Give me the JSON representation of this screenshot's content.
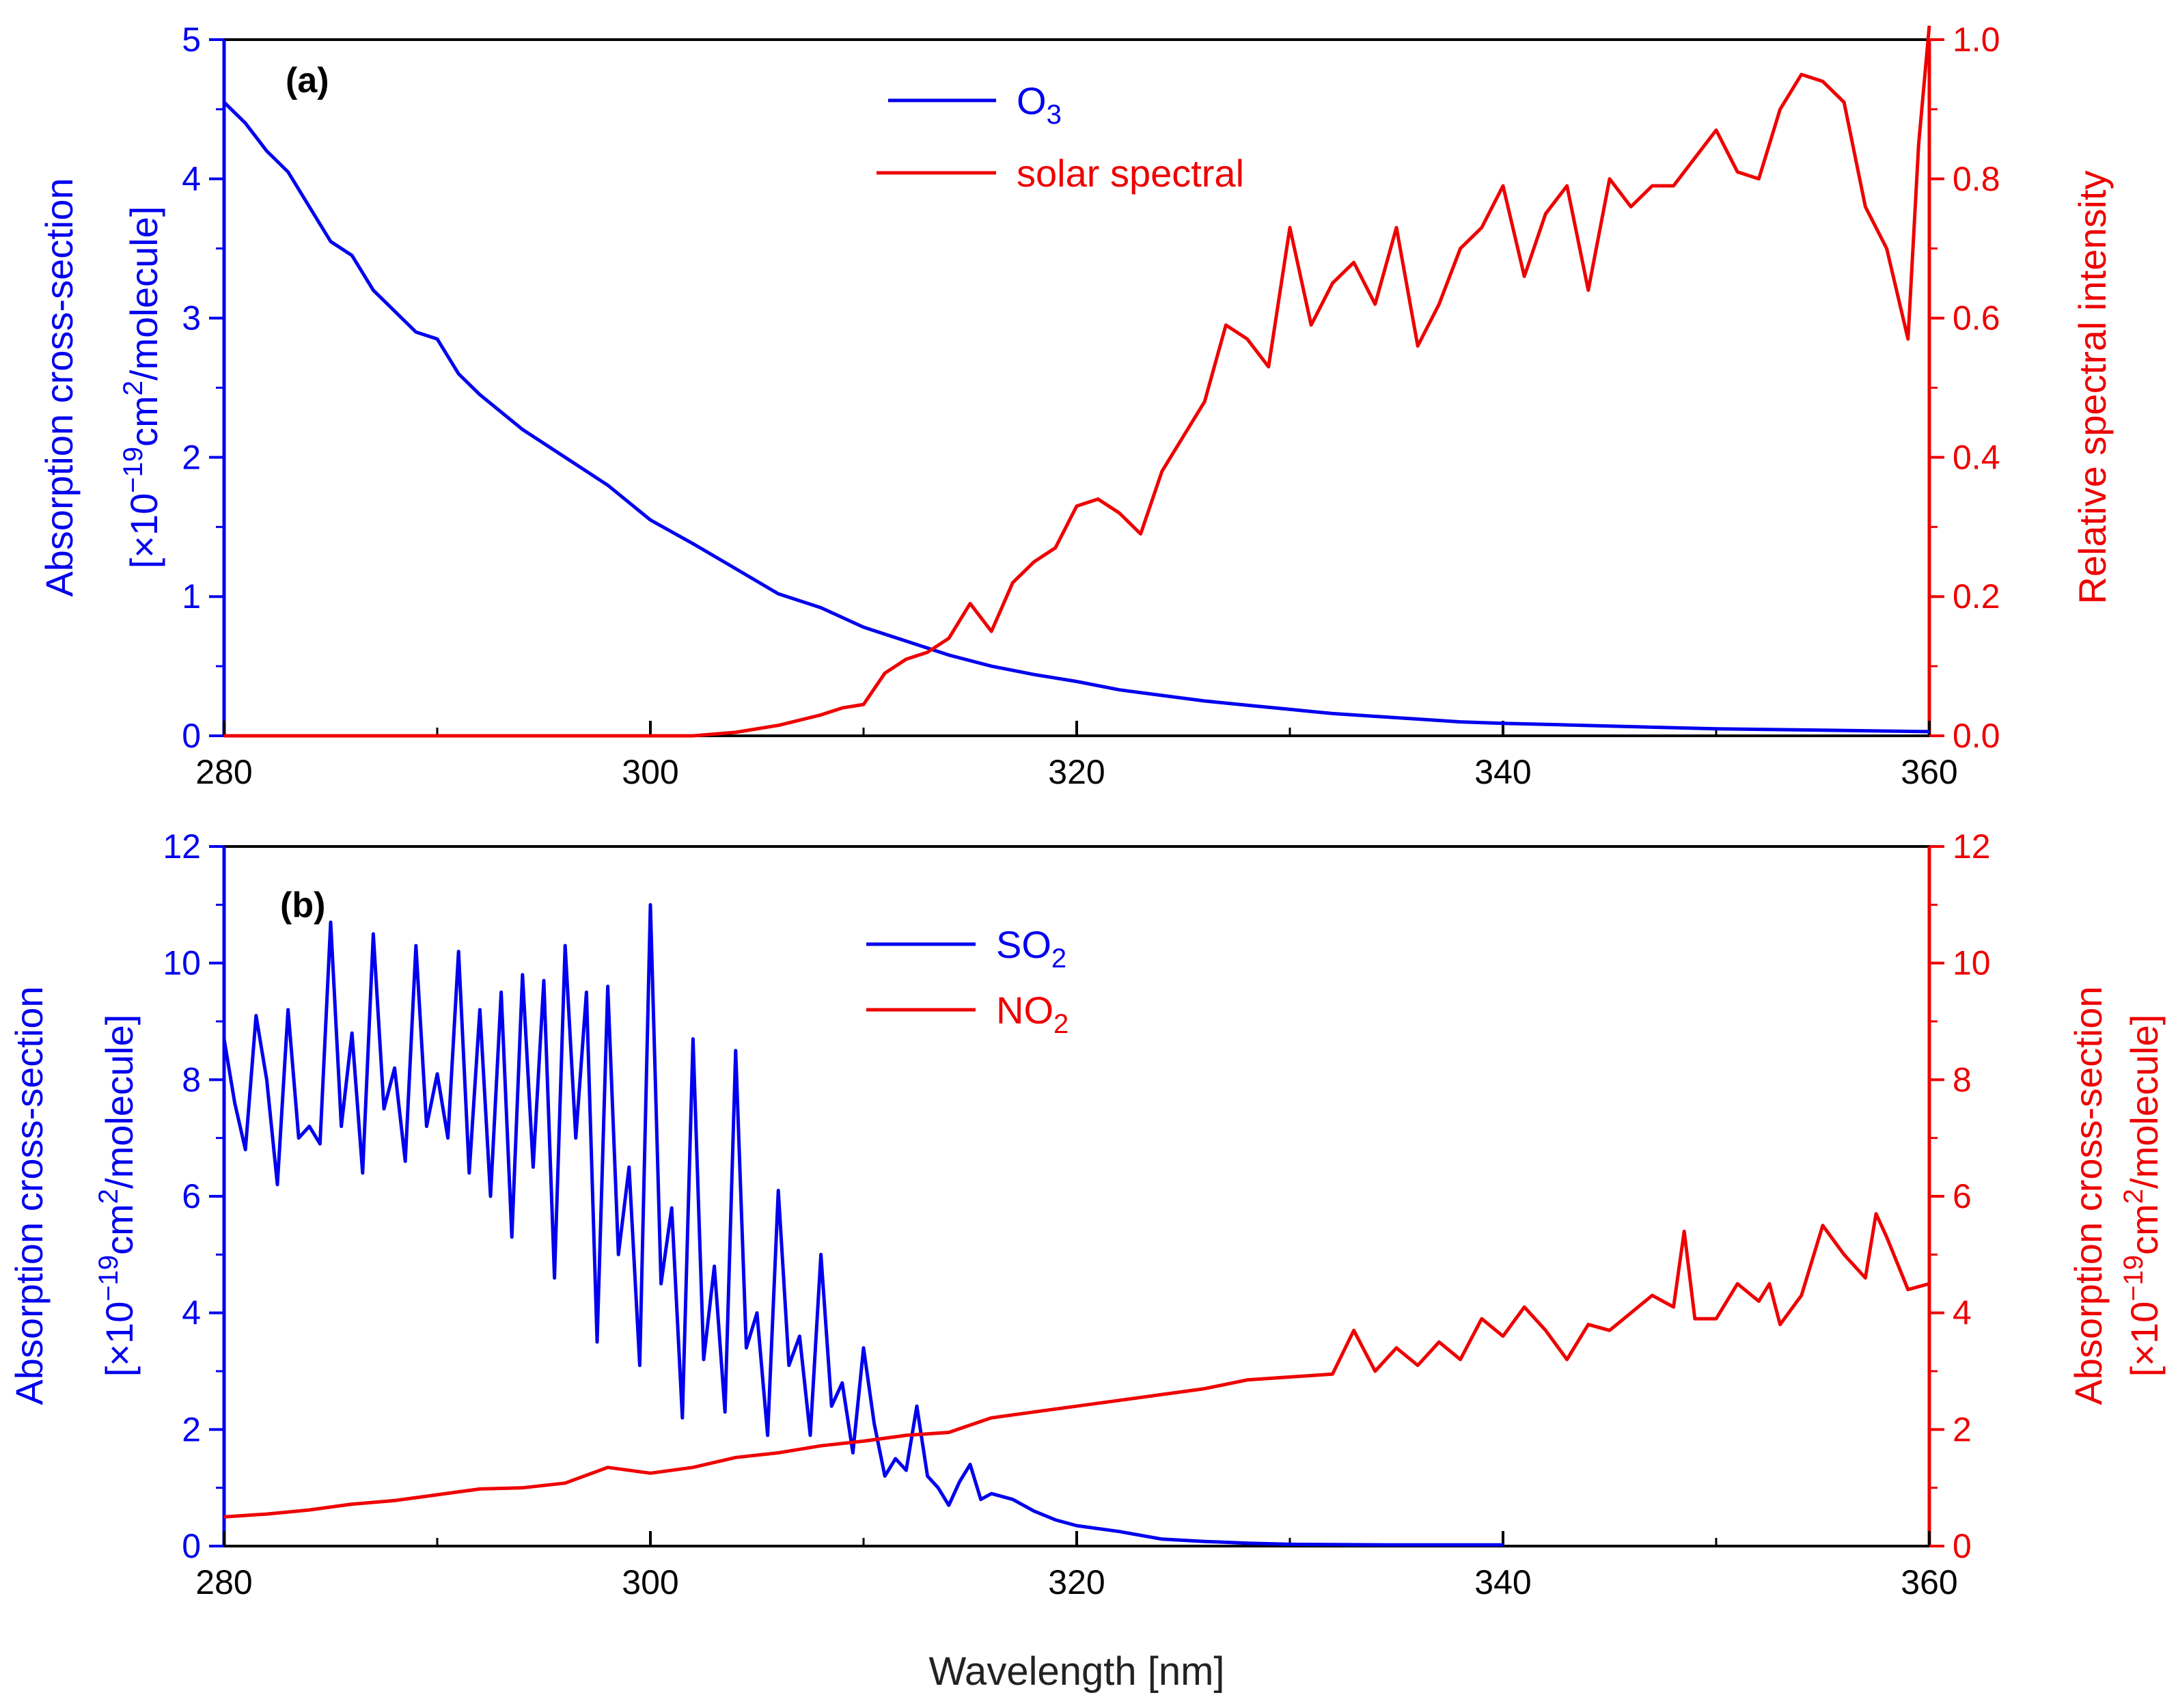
{
  "colors": {
    "blue": "#0000ee",
    "red": "#ee0000",
    "black": "#000000"
  },
  "x_axis_title": "Wavelength [nm]",
  "chart_data": [
    {
      "type": "line",
      "panel_label": "(a)",
      "xlim": [
        280,
        360
      ],
      "xticks": [
        "280",
        "300",
        "320",
        "340",
        "360"
      ],
      "y_left": {
        "title_line1": "Absorption cross-section",
        "title_line2_pre": "[×10",
        "title_line2_exp": "−19",
        "title_line2_mid": "cm",
        "title_line2_sup2": "2",
        "title_line2_post": "/molecule]",
        "ylim": [
          0,
          5
        ],
        "ticks": [
          "0",
          "1",
          "2",
          "3",
          "4",
          "5"
        ]
      },
      "y_right": {
        "title": "Relative spectral intensity",
        "ylim": [
          0,
          1.0
        ],
        "ticks": [
          "0.0",
          "0.2",
          "0.4",
          "0.6",
          "0.8",
          "1.0"
        ]
      },
      "legend": [
        {
          "name": "O",
          "sub": "3",
          "color": "#0000ee"
        },
        {
          "name": "solar spectral",
          "sub": "",
          "color": "#ee0000"
        }
      ],
      "series": [
        {
          "name": "O3",
          "axis": "left",
          "color": "#0000ee",
          "x": [
            280,
            281,
            282,
            283,
            284,
            285,
            286,
            287,
            288,
            289,
            290,
            291,
            292,
            294,
            296,
            298,
            300,
            302,
            304,
            306,
            308,
            310,
            312,
            314,
            316,
            318,
            320,
            322,
            324,
            326,
            328,
            330,
            332,
            334,
            336,
            338,
            340,
            345,
            350,
            355,
            360
          ],
          "y": [
            4.55,
            4.4,
            4.2,
            4.05,
            3.8,
            3.55,
            3.45,
            3.2,
            3.05,
            2.9,
            2.85,
            2.6,
            2.45,
            2.2,
            2.0,
            1.8,
            1.55,
            1.38,
            1.2,
            1.02,
            0.92,
            0.78,
            0.68,
            0.58,
            0.5,
            0.44,
            0.39,
            0.33,
            0.29,
            0.25,
            0.22,
            0.19,
            0.16,
            0.14,
            0.12,
            0.1,
            0.09,
            0.07,
            0.05,
            0.04,
            0.03
          ]
        },
        {
          "name": "solar spectral",
          "axis": "right",
          "color": "#ee0000",
          "x": [
            280,
            302,
            304,
            306,
            308,
            309,
            310,
            311,
            312,
            313,
            314,
            315,
            316,
            317,
            318,
            319,
            320,
            321,
            322,
            323,
            324,
            325,
            326,
            327,
            328,
            329,
            330,
            331,
            332,
            333,
            334,
            335,
            336,
            337,
            338,
            339,
            340,
            341,
            342,
            343,
            344,
            345,
            346,
            347,
            348,
            349,
            350,
            351,
            352,
            353,
            354,
            355,
            356,
            357,
            358,
            359,
            359.5,
            360
          ],
          "y": [
            0.0,
            0.0,
            0.005,
            0.015,
            0.03,
            0.04,
            0.045,
            0.09,
            0.11,
            0.12,
            0.14,
            0.19,
            0.15,
            0.22,
            0.25,
            0.27,
            0.33,
            0.34,
            0.32,
            0.29,
            0.38,
            0.43,
            0.48,
            0.59,
            0.57,
            0.53,
            0.73,
            0.59,
            0.65,
            0.68,
            0.62,
            0.73,
            0.56,
            0.62,
            0.7,
            0.73,
            0.79,
            0.66,
            0.75,
            0.79,
            0.64,
            0.8,
            0.76,
            0.79,
            0.79,
            0.83,
            0.87,
            0.81,
            0.8,
            0.9,
            0.95,
            0.94,
            0.91,
            0.76,
            0.7,
            0.57,
            0.85,
            1.02
          ]
        }
      ]
    },
    {
      "type": "line",
      "panel_label": "(b)",
      "xlim": [
        280,
        360
      ],
      "xticks": [
        "280",
        "300",
        "320",
        "340",
        "360"
      ],
      "y_left": {
        "title_line1": "Absorption cross-section",
        "title_line2_pre": "[×10",
        "title_line2_exp": "−19",
        "title_line2_mid": "cm",
        "title_line2_sup2": "2",
        "title_line2_post": "/molecule]",
        "ylim": [
          0,
          12
        ],
        "ticks": [
          "0",
          "2",
          "4",
          "6",
          "8",
          "10",
          "12"
        ]
      },
      "y_right": {
        "title_line1": "Absorption cross-section",
        "title_line2_pre": "[×10",
        "title_line2_exp": "−19",
        "title_line2_mid": "cm",
        "title_line2_sup2": "2",
        "title_line2_post": "/molecule]",
        "ylim": [
          0,
          12
        ],
        "ticks": [
          "0",
          "2",
          "4",
          "6",
          "8",
          "10",
          "12"
        ]
      },
      "legend": [
        {
          "name": "SO",
          "sub": "2",
          "color": "#0000ee"
        },
        {
          "name": "NO",
          "sub": "2",
          "color": "#ee0000"
        }
      ],
      "series": [
        {
          "name": "SO2",
          "axis": "left",
          "color": "#0000ee",
          "x": [
            280,
            280.5,
            281,
            281.5,
            282,
            282.5,
            283,
            283.5,
            284,
            284.5,
            285,
            285.5,
            286,
            286.5,
            287,
            287.5,
            288,
            288.5,
            289,
            289.5,
            290,
            290.5,
            291,
            291.5,
            292,
            292.5,
            293,
            293.5,
            294,
            294.5,
            295,
            295.5,
            296,
            296.5,
            297,
            297.5,
            298,
            298.5,
            299,
            299.5,
            300,
            300.5,
            301,
            301.5,
            302,
            302.5,
            303,
            303.5,
            304,
            304.5,
            305,
            305.5,
            306,
            306.5,
            307,
            307.5,
            308,
            308.5,
            309,
            309.5,
            310,
            310.5,
            311,
            311.5,
            312,
            312.5,
            313,
            313.5,
            314,
            314.5,
            315,
            315.5,
            316,
            317,
            318,
            319,
            320,
            322,
            324,
            326,
            328,
            330,
            335,
            340
          ],
          "y": [
            8.7,
            7.6,
            6.8,
            9.1,
            8.0,
            6.2,
            9.2,
            7.0,
            7.2,
            6.9,
            10.7,
            7.2,
            8.8,
            6.4,
            10.5,
            7.5,
            8.2,
            6.6,
            10.3,
            7.2,
            8.1,
            7.0,
            10.2,
            6.4,
            9.2,
            6.0,
            9.5,
            5.3,
            9.8,
            6.5,
            9.7,
            4.6,
            10.3,
            7.0,
            9.5,
            3.5,
            9.6,
            5.0,
            6.5,
            3.1,
            11.0,
            4.5,
            5.8,
            2.2,
            8.7,
            3.2,
            4.8,
            2.3,
            8.5,
            3.4,
            4.0,
            1.9,
            6.1,
            3.1,
            3.6,
            1.9,
            5.0,
            2.4,
            2.8,
            1.6,
            3.4,
            2.1,
            1.2,
            1.5,
            1.3,
            2.4,
            1.2,
            1.0,
            0.7,
            1.1,
            1.4,
            0.8,
            0.9,
            0.8,
            0.6,
            0.45,
            0.35,
            0.25,
            0.12,
            0.08,
            0.05,
            0.03,
            0.02,
            0.02
          ]
        },
        {
          "name": "NO2",
          "axis": "right",
          "color": "#ee0000",
          "x": [
            280,
            282,
            284,
            286,
            288,
            290,
            292,
            294,
            296,
            298,
            300,
            302,
            304,
            306,
            308,
            310,
            312,
            314,
            316,
            318,
            320,
            322,
            324,
            326,
            328,
            330,
            332,
            333,
            334,
            335,
            336,
            337,
            338,
            339,
            340,
            341,
            342,
            343,
            344,
            345,
            346,
            347,
            348,
            348.5,
            349,
            350,
            351,
            352,
            352.5,
            353,
            354,
            355,
            356,
            357,
            357.5,
            358,
            359,
            360
          ],
          "y": [
            0.5,
            0.55,
            0.62,
            0.72,
            0.78,
            0.88,
            0.98,
            1.0,
            1.08,
            1.35,
            1.25,
            1.35,
            1.52,
            1.6,
            1.72,
            1.8,
            1.9,
            1.95,
            2.2,
            2.3,
            2.4,
            2.5,
            2.6,
            2.7,
            2.85,
            2.9,
            2.95,
            3.7,
            3.0,
            3.4,
            3.1,
            3.5,
            3.2,
            3.9,
            3.6,
            4.1,
            3.7,
            3.2,
            3.8,
            3.7,
            4.0,
            4.3,
            4.1,
            5.4,
            3.9,
            3.9,
            4.5,
            4.2,
            4.5,
            3.8,
            4.3,
            5.5,
            5.0,
            4.6,
            5.7,
            5.3,
            4.4,
            4.5
          ]
        }
      ]
    }
  ]
}
